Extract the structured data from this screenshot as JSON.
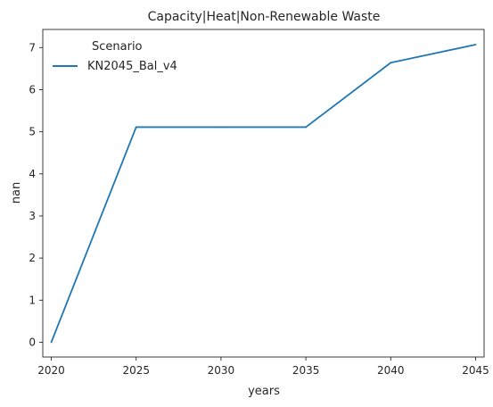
{
  "chart_data": {
    "type": "line",
    "title": "Capacity|Heat|Non-Renewable Waste",
    "xlabel": "years",
    "ylabel": "nan",
    "x": [
      2020,
      2025,
      2030,
      2035,
      2040,
      2045
    ],
    "xticks": [
      2020,
      2025,
      2030,
      2035,
      2040,
      2045
    ],
    "yticks": [
      0,
      1,
      2,
      3,
      4,
      5,
      6,
      7
    ],
    "xlim": [
      2019.5,
      2045.5
    ],
    "ylim": [
      -0.35,
      7.43
    ],
    "grid": false,
    "legend": {
      "title": "Scenario",
      "placement": "top-left"
    },
    "series": [
      {
        "name": "KN2045_Bal_v4",
        "color": "#1f77b4",
        "values": [
          0,
          5.11,
          5.11,
          5.11,
          6.64,
          7.07
        ]
      }
    ]
  }
}
